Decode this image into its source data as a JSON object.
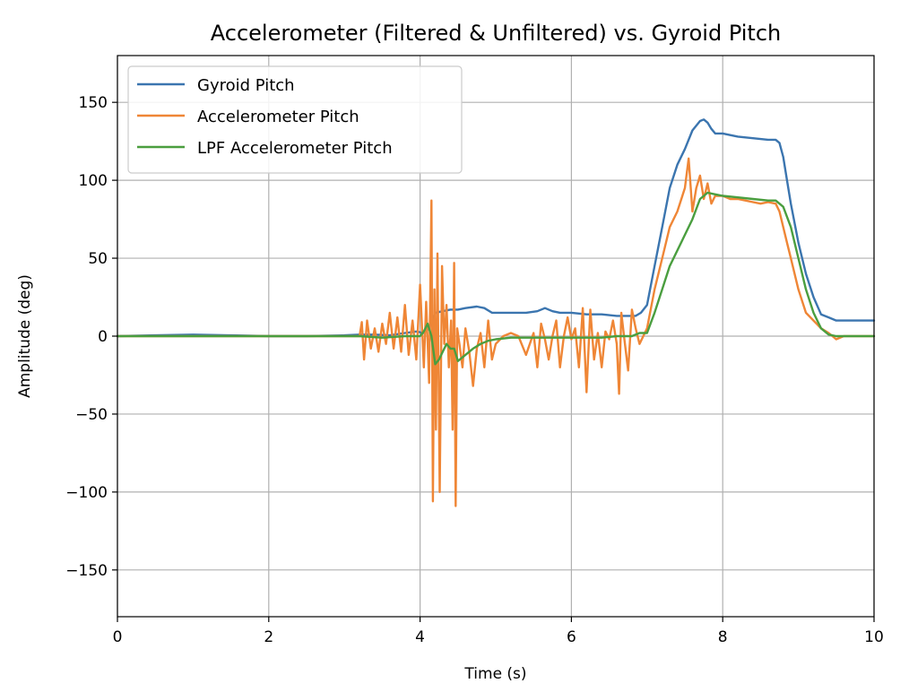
{
  "chart_data": {
    "type": "line",
    "title": "Accelerometer (Filtered & Unfiltered) vs. Gyroid Pitch",
    "xlabel": "Time (s)",
    "ylabel": "Amplitude (deg)",
    "xlim": [
      0,
      10
    ],
    "ylim": [
      -180,
      180
    ],
    "xticks": [
      0,
      2,
      4,
      6,
      8,
      10
    ],
    "xtick_labels": [
      "0",
      "2",
      "4",
      "6",
      "8",
      "10"
    ],
    "yticks": [
      -150,
      -100,
      -50,
      0,
      50,
      100,
      150
    ],
    "ytick_labels": [
      "−150",
      "−100",
      "−50",
      "0",
      "50",
      "100",
      "150"
    ],
    "grid": true,
    "legend_position": "top-left",
    "series": [
      {
        "name": "Gyroid Pitch",
        "color": "#3b75af",
        "x": [
          0,
          0.5,
          1.0,
          1.5,
          2.0,
          2.5,
          3.0,
          3.2,
          3.4,
          3.6,
          3.8,
          3.95,
          4.05,
          4.12,
          4.2,
          4.3,
          4.4,
          4.5,
          4.6,
          4.75,
          4.85,
          4.95,
          5.0,
          5.2,
          5.4,
          5.55,
          5.65,
          5.75,
          5.85,
          6.0,
          6.2,
          6.4,
          6.6,
          6.75,
          6.85,
          6.92,
          7.0,
          7.1,
          7.2,
          7.3,
          7.4,
          7.5,
          7.6,
          7.7,
          7.75,
          7.8,
          7.85,
          7.9,
          8.0,
          8.1,
          8.2,
          8.4,
          8.6,
          8.7,
          8.75,
          8.8,
          8.85,
          8.9,
          9.0,
          9.1,
          9.2,
          9.3,
          9.4,
          9.5,
          9.6,
          9.8,
          10.0
        ],
        "y": [
          0,
          0.5,
          1,
          0.5,
          0,
          0,
          0.5,
          1,
          1,
          0.5,
          2,
          3,
          2,
          5,
          15,
          16,
          17,
          17,
          18,
          19,
          18,
          15,
          15,
          15,
          15,
          16,
          18,
          16,
          15,
          15,
          14,
          14,
          13,
          13,
          13,
          15,
          20,
          45,
          70,
          95,
          110,
          120,
          132,
          138,
          139,
          137,
          133,
          130,
          130,
          129,
          128,
          127,
          126,
          126,
          124,
          115,
          100,
          85,
          60,
          40,
          25,
          14,
          12,
          10,
          10,
          10,
          10
        ]
      },
      {
        "name": "Accelerometer Pitch",
        "color": "#ef8636",
        "x": [
          0,
          0.5,
          1.0,
          1.5,
          2.0,
          2.5,
          3.0,
          3.2,
          3.23,
          3.26,
          3.3,
          3.35,
          3.4,
          3.45,
          3.5,
          3.55,
          3.6,
          3.65,
          3.7,
          3.75,
          3.8,
          3.85,
          3.9,
          3.95,
          4.0,
          4.05,
          4.08,
          4.12,
          4.15,
          4.17,
          4.19,
          4.21,
          4.23,
          4.26,
          4.29,
          4.32,
          4.35,
          4.38,
          4.41,
          4.43,
          4.45,
          4.47,
          4.49,
          4.52,
          4.56,
          4.6,
          4.65,
          4.7,
          4.75,
          4.8,
          4.85,
          4.9,
          4.95,
          5.0,
          5.1,
          5.2,
          5.3,
          5.4,
          5.5,
          5.55,
          5.6,
          5.65,
          5.7,
          5.75,
          5.8,
          5.85,
          5.9,
          5.95,
          6.0,
          6.05,
          6.1,
          6.15,
          6.2,
          6.25,
          6.3,
          6.35,
          6.4,
          6.45,
          6.5,
          6.55,
          6.6,
          6.63,
          6.66,
          6.7,
          6.75,
          6.8,
          6.85,
          6.9,
          7.0,
          7.1,
          7.2,
          7.3,
          7.4,
          7.5,
          7.55,
          7.6,
          7.65,
          7.7,
          7.75,
          7.8,
          7.85,
          7.9,
          8.0,
          8.1,
          8.2,
          8.3,
          8.4,
          8.5,
          8.6,
          8.7,
          8.75,
          8.8,
          8.85,
          8.9,
          9.0,
          9.1,
          9.2,
          9.3,
          9.4,
          9.5,
          9.6,
          9.8,
          10.0
        ],
        "y": [
          0,
          0,
          0,
          0,
          0,
          0,
          0,
          0,
          9,
          -15,
          10,
          -8,
          5,
          -10,
          8,
          -5,
          15,
          -8,
          12,
          -10,
          20,
          -12,
          10,
          -15,
          33,
          -20,
          22,
          -30,
          87,
          -106,
          30,
          -60,
          53,
          -100,
          45,
          -5,
          20,
          -20,
          10,
          -60,
          47,
          -109,
          5,
          -5,
          -20,
          5,
          -10,
          -32,
          -8,
          2,
          -20,
          10,
          -15,
          -5,
          0,
          2,
          0,
          -12,
          2,
          -20,
          8,
          -2,
          -15,
          0,
          10,
          -20,
          0,
          12,
          -2,
          5,
          -20,
          18,
          -36,
          17,
          -15,
          2,
          -20,
          3,
          -2,
          10,
          -5,
          -37,
          15,
          -2,
          -22,
          17,
          5,
          -5,
          5,
          30,
          50,
          70,
          80,
          95,
          114,
          80,
          95,
          103,
          88,
          98,
          85,
          90,
          90,
          88,
          88,
          87,
          86,
          85,
          86,
          85,
          80,
          70,
          60,
          50,
          30,
          15,
          10,
          5,
          2,
          -2,
          0,
          0,
          0
        ]
      },
      {
        "name": "LPF Accelerometer Pitch",
        "color": "#4a9e3f",
        "x": [
          0,
          1.0,
          2.0,
          3.0,
          3.2,
          3.5,
          3.8,
          4.0,
          4.05,
          4.1,
          4.15,
          4.2,
          4.25,
          4.3,
          4.35,
          4.4,
          4.45,
          4.5,
          4.6,
          4.7,
          4.8,
          4.9,
          5.0,
          5.2,
          5.4,
          5.6,
          5.8,
          6.0,
          6.2,
          6.4,
          6.6,
          6.8,
          6.9,
          7.0,
          7.1,
          7.2,
          7.3,
          7.4,
          7.5,
          7.6,
          7.7,
          7.8,
          7.9,
          8.0,
          8.2,
          8.4,
          8.6,
          8.7,
          8.8,
          8.9,
          9.0,
          9.1,
          9.2,
          9.3,
          9.4,
          9.5,
          9.6,
          9.8,
          10.0
        ],
        "y": [
          0,
          0,
          0,
          0,
          0,
          -1,
          0,
          0,
          3,
          8,
          0,
          -18,
          -15,
          -10,
          -5,
          -8,
          -8,
          -16,
          -12,
          -8,
          -5,
          -3,
          -2,
          -1,
          -1,
          -1,
          -1,
          -1,
          -1,
          -1,
          0,
          0,
          2,
          2,
          15,
          30,
          45,
          55,
          65,
          75,
          88,
          92,
          91,
          90,
          89,
          88,
          87,
          87,
          83,
          70,
          50,
          30,
          15,
          5,
          1,
          0,
          0,
          0,
          0
        ]
      }
    ]
  }
}
